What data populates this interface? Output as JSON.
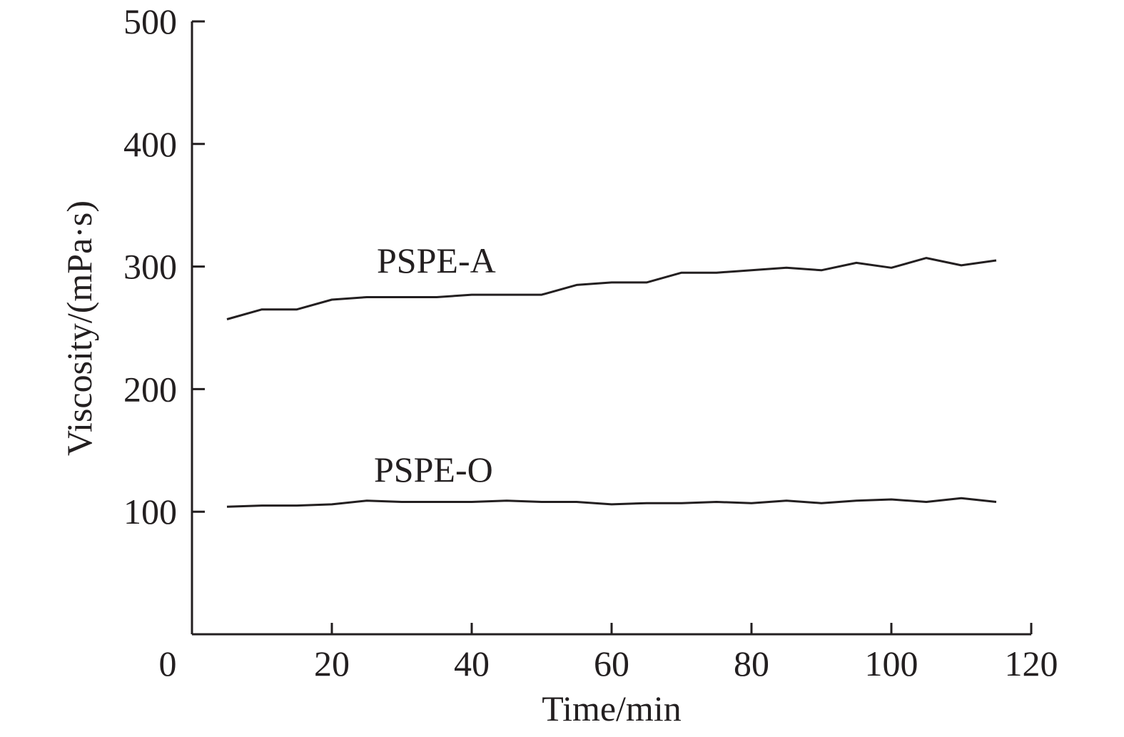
{
  "chart_data": {
    "type": "line",
    "title": "",
    "xlabel": "Time/min",
    "ylabel": "Viscosity/(mPa·s)",
    "xlim": [
      0,
      120
    ],
    "ylim": [
      0,
      500
    ],
    "xticks": [
      0,
      20,
      40,
      60,
      80,
      100,
      120
    ],
    "yticks": [
      100,
      200,
      300,
      400,
      500
    ],
    "x_tick_labels": [
      "0",
      "20",
      "40",
      "60",
      "80",
      "100",
      "120"
    ],
    "y_tick_labels": [
      "100",
      "200",
      "300",
      "400",
      "500"
    ],
    "grid": false,
    "line_color": "#231f20",
    "series": [
      {
        "name": "PSPE-A",
        "x": [
          5,
          10,
          15,
          20,
          25,
          30,
          35,
          40,
          45,
          50,
          55,
          60,
          65,
          70,
          75,
          80,
          85,
          90,
          95,
          100,
          105,
          110,
          115
        ],
        "values": [
          257,
          265,
          265,
          273,
          275,
          275,
          275,
          277,
          277,
          277,
          285,
          287,
          287,
          295,
          295,
          297,
          299,
          297,
          303,
          299,
          307,
          301,
          305
        ]
      },
      {
        "name": "PSPE-O",
        "x": [
          5,
          10,
          15,
          20,
          25,
          30,
          35,
          40,
          45,
          50,
          55,
          60,
          65,
          70,
          75,
          80,
          85,
          90,
          95,
          100,
          105,
          110,
          115
        ],
        "values": [
          104,
          105,
          105,
          106,
          109,
          108,
          108,
          108,
          109,
          108,
          108,
          106,
          107,
          107,
          108,
          107,
          109,
          107,
          109,
          110,
          108,
          111,
          108
        ]
      }
    ]
  }
}
